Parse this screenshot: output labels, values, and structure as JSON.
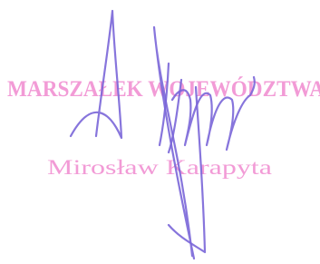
{
  "stamp": {
    "title": "MARSZAŁEK WOJEWÓDZTWA",
    "name": "Mirosław Karapyta"
  }
}
